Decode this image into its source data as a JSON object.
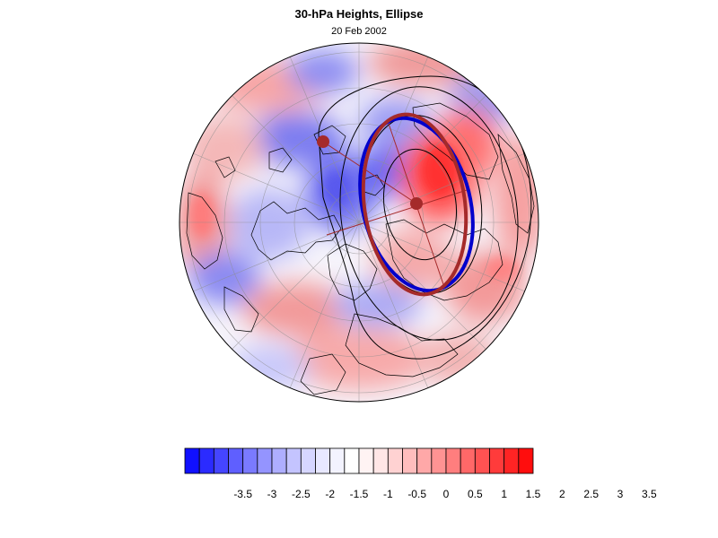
{
  "title": "30-hPa Heights, Ellipse",
  "subtitle": "20 Feb 2002",
  "colorbar": {
    "colors": [
      "#1010ff",
      "#2b2bff",
      "#4545ff",
      "#5f5fff",
      "#7a7aff",
      "#9494ff",
      "#aeaeff",
      "#c4c4ff",
      "#d6d6ff",
      "#e8e8ff",
      "#f3f3ff",
      "#ffffff",
      "#fff3f3",
      "#ffe6e6",
      "#ffd2d2",
      "#ffbdbd",
      "#ffa8a8",
      "#ff9393",
      "#ff7e7e",
      "#ff6868",
      "#ff5252",
      "#ff3b3b",
      "#ff2424",
      "#ff0d0d"
    ],
    "labels": [
      "-3.5",
      "-3",
      "-2.5",
      "-2",
      "-1.5",
      "-1",
      "-0.5",
      "0",
      "0.5",
      "1",
      "1.5",
      "2",
      "2.5",
      "3",
      "3.5"
    ]
  },
  "map": {
    "projection": "north-polar-stereographic",
    "ellipse_colors": {
      "analysis": "#a52a2a",
      "fitted": "#0000cc"
    },
    "center_marker_color": "#a52a2a"
  }
}
